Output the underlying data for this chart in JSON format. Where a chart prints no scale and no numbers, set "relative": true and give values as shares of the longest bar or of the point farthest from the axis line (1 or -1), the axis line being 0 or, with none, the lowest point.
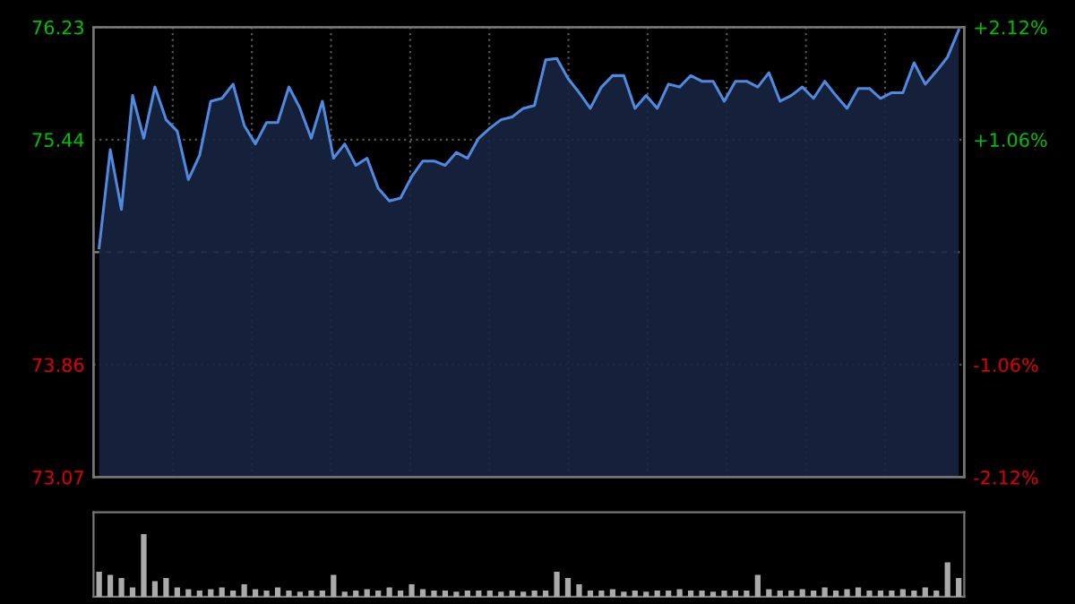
{
  "chart_data": [
    {
      "type": "area",
      "categories": [
        null,
        null,
        null,
        null,
        null,
        null,
        null,
        null,
        null,
        null,
        null,
        null,
        null,
        null,
        null,
        null,
        null,
        null,
        null,
        null,
        null,
        null,
        null,
        null,
        null,
        null,
        null,
        null,
        null,
        null,
        null,
        null,
        null,
        null,
        null,
        null,
        null,
        null,
        null,
        null,
        null,
        null,
        null,
        null,
        null,
        null,
        null,
        null,
        null,
        null,
        null,
        null,
        null,
        null,
        null,
        null,
        null,
        null,
        null,
        null,
        null,
        null,
        null,
        null,
        null,
        null,
        null,
        null,
        null,
        null,
        null,
        null,
        null,
        null,
        null,
        null,
        null,
        null
      ],
      "series": [
        {
          "color": "#4f8ae0",
          "values": [
            74.68,
            75.37,
            74.95,
            75.75,
            75.45,
            75.81,
            75.58,
            75.5,
            75.16,
            75.33,
            75.71,
            75.73,
            75.83,
            75.54,
            75.41,
            75.56,
            75.56,
            75.81,
            75.66,
            75.45,
            75.71,
            75.31,
            75.41,
            75.26,
            75.31,
            75.1,
            75.01,
            75.03,
            75.18,
            75.29,
            75.29,
            75.26,
            75.35,
            75.31,
            75.45,
            75.52,
            75.58,
            75.6,
            75.66,
            75.68,
            76.0,
            76.01,
            75.87,
            75.77,
            75.66,
            75.81,
            75.89,
            75.89,
            75.66,
            75.75,
            75.66,
            75.83,
            75.81,
            75.89,
            75.85,
            75.85,
            75.71,
            75.85,
            75.85,
            75.81,
            75.91,
            75.71,
            75.75,
            75.81,
            75.73,
            75.85,
            75.75,
            75.66,
            75.8,
            75.8,
            75.73,
            75.77,
            75.77,
            75.98,
            75.83,
            75.92,
            76.02,
            76.21
          ]
        }
      ],
      "ylim": [
        73.07,
        76.23
      ],
      "yticks": [
        73.07,
        73.86,
        75.44,
        76.23
      ],
      "y2lim": [
        -2.12,
        2.12
      ],
      "y2ticks": [
        {
          "value": -2.12,
          "label": "-2.12%"
        },
        {
          "value": -1.06,
          "label": "-1.06%"
        },
        {
          "value": 1.06,
          "label": "+1.06%"
        },
        {
          "value": 2.12,
          "label": "+2.12%"
        }
      ],
      "ref_lines": [
        {
          "axis": "y",
          "value": 74.65,
          "line_style": "dashed",
          "color": "#888888"
        }
      ],
      "grid": true,
      "marker": "none"
    },
    {
      "type": "bar",
      "relative": true,
      "categories": [
        null,
        null,
        null,
        null,
        null,
        null,
        null,
        null,
        null,
        null,
        null,
        null,
        null,
        null,
        null,
        null,
        null,
        null,
        null,
        null,
        null,
        null,
        null,
        null,
        null,
        null,
        null,
        null,
        null,
        null,
        null,
        null,
        null,
        null,
        null,
        null,
        null,
        null,
        null,
        null,
        null,
        null,
        null,
        null,
        null,
        null,
        null,
        null,
        null,
        null,
        null,
        null,
        null,
        null,
        null,
        null,
        null,
        null,
        null,
        null,
        null,
        null,
        null,
        null,
        null,
        null,
        null,
        null,
        null,
        null,
        null,
        null,
        null,
        null,
        null,
        null,
        null,
        null
      ],
      "series": [
        {
          "color": "#aaaaaa",
          "values": [
            0.4,
            0.35,
            0.3,
            0.15,
            1.0,
            0.25,
            0.3,
            0.15,
            0.12,
            0.1,
            0.12,
            0.15,
            0.1,
            0.2,
            0.12,
            0.1,
            0.15,
            0.1,
            0.08,
            0.1,
            0.1,
            0.35,
            0.08,
            0.1,
            0.12,
            0.1,
            0.15,
            0.1,
            0.2,
            0.12,
            0.1,
            0.1,
            0.08,
            0.1,
            0.1,
            0.1,
            0.08,
            0.1,
            0.08,
            0.1,
            0.1,
            0.4,
            0.3,
            0.2,
            0.1,
            0.1,
            0.12,
            0.08,
            0.1,
            0.08,
            0.1,
            0.1,
            0.12,
            0.1,
            0.1,
            0.08,
            0.1,
            0.1,
            0.1,
            0.35,
            0.12,
            0.1,
            0.1,
            0.12,
            0.1,
            0.15,
            0.1,
            0.12,
            0.15,
            0.1,
            0.1,
            0.1,
            0.12,
            0.1,
            0.15,
            0.1,
            0.55,
            0.3
          ]
        }
      ]
    }
  ]
}
